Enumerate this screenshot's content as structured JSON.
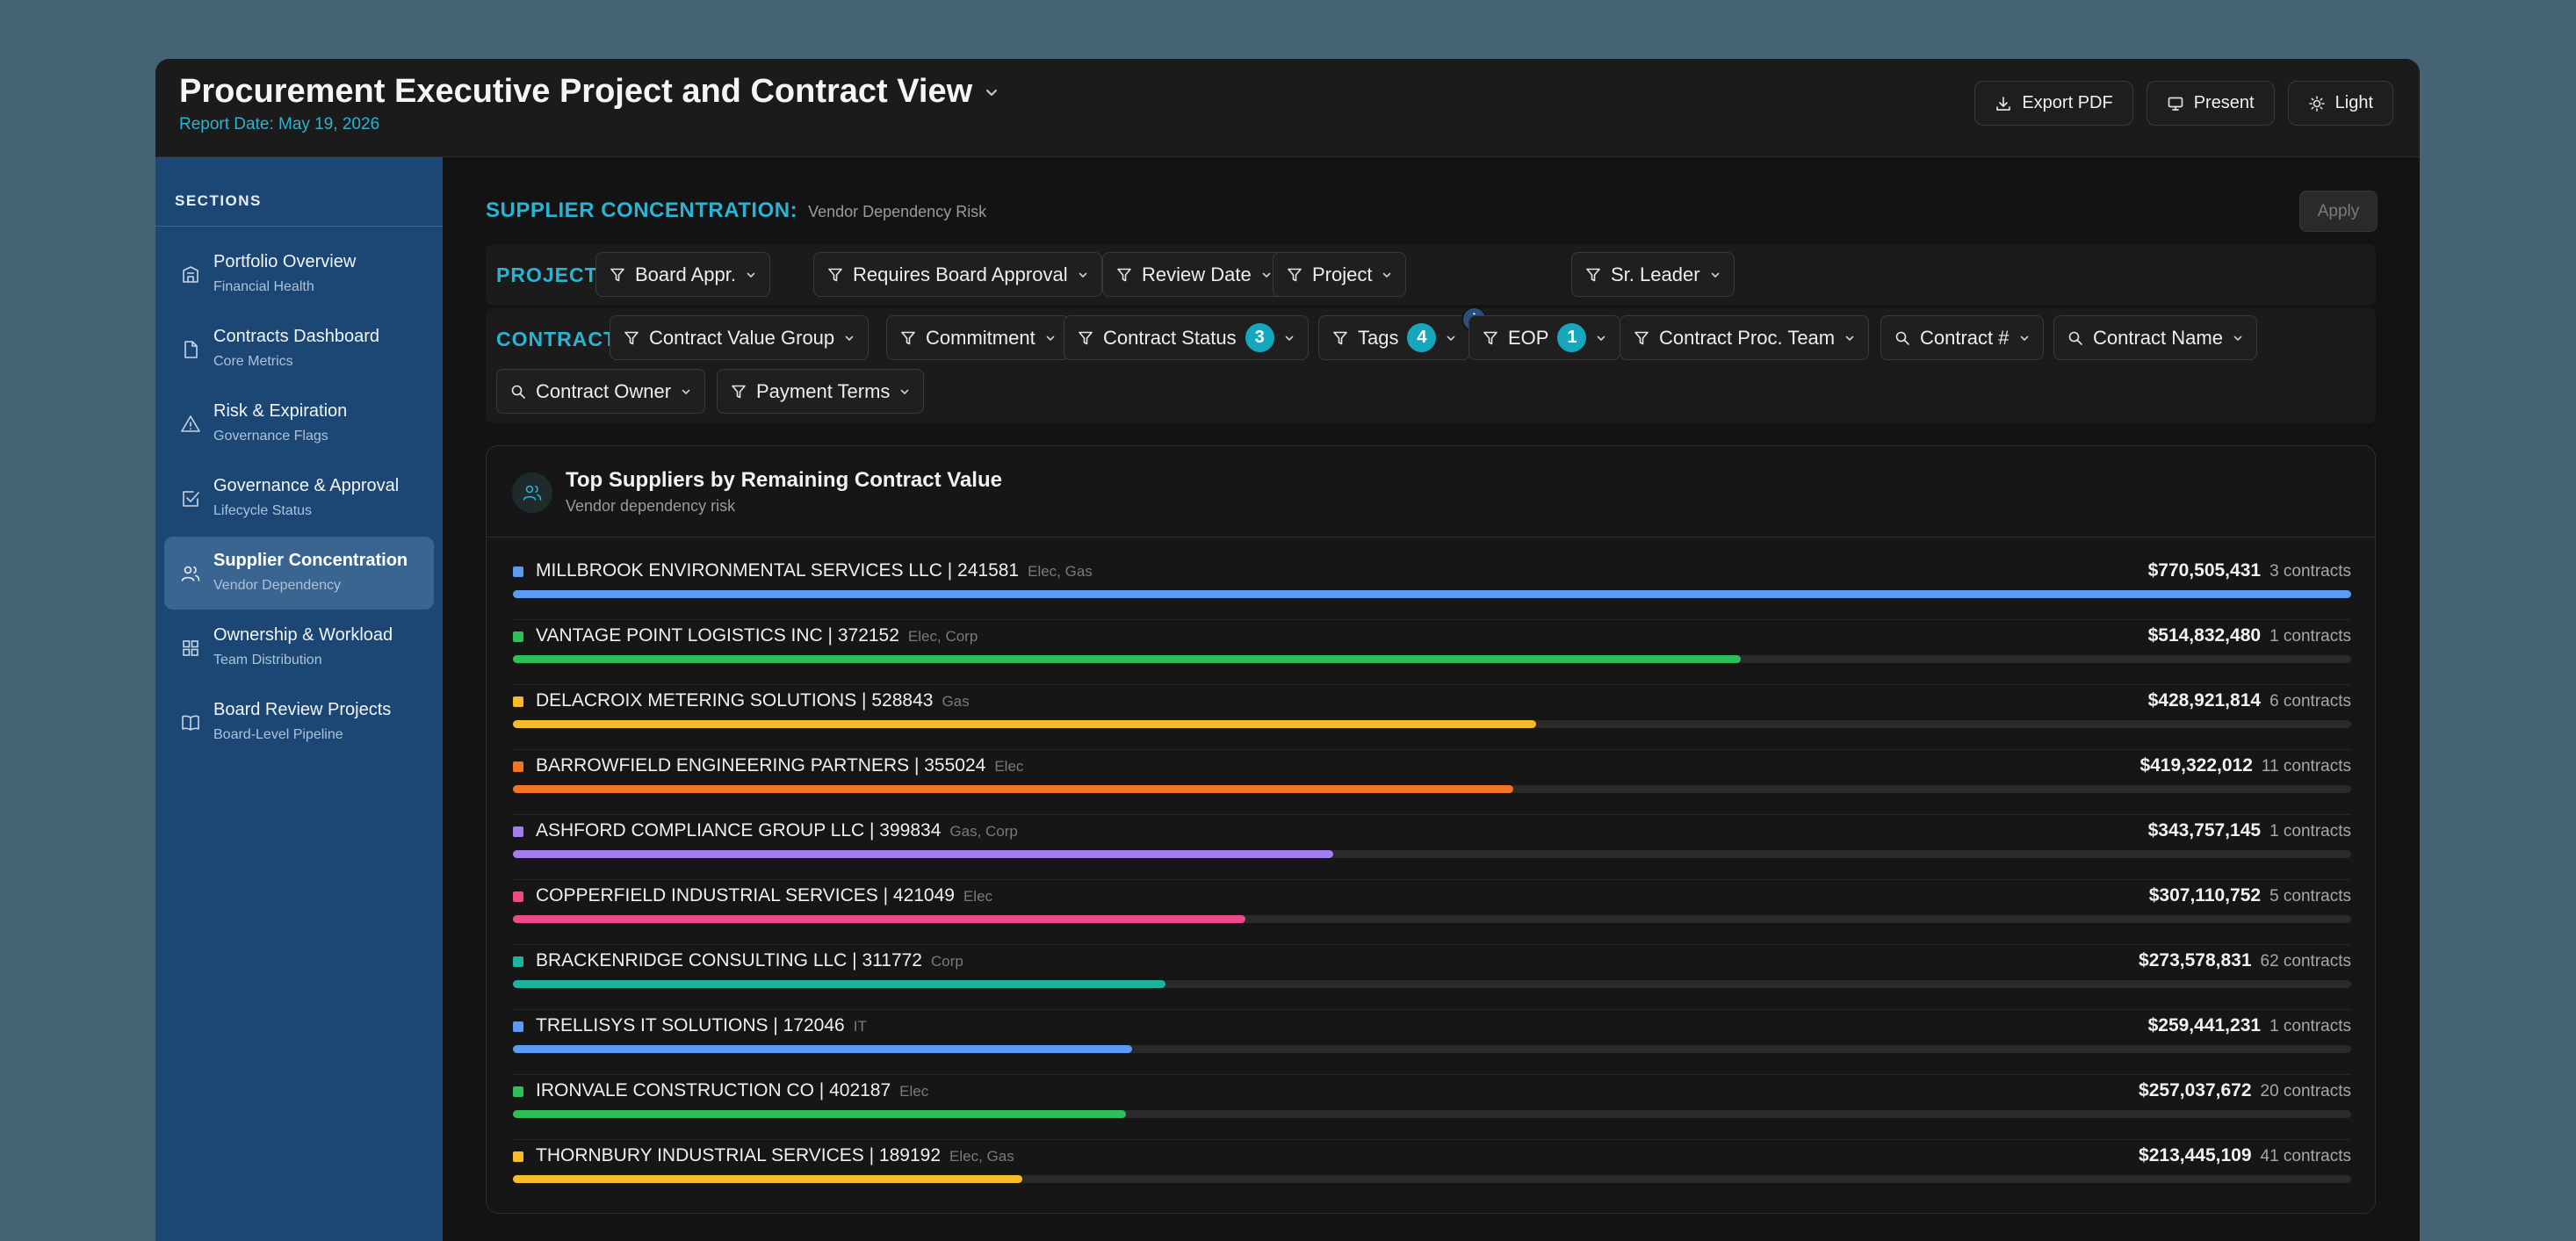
{
  "header": {
    "title": "Procurement Executive Project and Contract View",
    "report_date": "Report Date: May 19, 2026",
    "buttons": {
      "export": "Export PDF",
      "present": "Present",
      "theme": "Light"
    }
  },
  "sidebar": {
    "label": "SECTIONS",
    "items": [
      {
        "title": "Portfolio Overview",
        "sub": "Financial Health",
        "icon": "building-icon"
      },
      {
        "title": "Contracts Dashboard",
        "sub": "Core Metrics",
        "icon": "document-icon"
      },
      {
        "title": "Risk & Expiration",
        "sub": "Governance Flags",
        "icon": "warning-icon"
      },
      {
        "title": "Governance & Approval",
        "sub": "Lifecycle Status",
        "icon": "checkbox-icon"
      },
      {
        "title": "Supplier Concentration",
        "sub": "Vendor Dependency",
        "icon": "users-icon",
        "active": true
      },
      {
        "title": "Ownership & Workload",
        "sub": "Team Distribution",
        "icon": "grid-icon"
      },
      {
        "title": "Board Review Projects",
        "sub": "Board-Level Pipeline",
        "icon": "book-icon"
      }
    ]
  },
  "section": {
    "title": "SUPPLIER CONCENTRATION:",
    "subtitle": "Vendor Dependency Risk",
    "apply": "Apply"
  },
  "filters": {
    "project_label": "PROJECT:",
    "project": [
      "Board Appr.",
      "Requires Board Approval",
      "Review Date",
      "Project",
      "Sr. Leader"
    ],
    "contract_label": "CONTRACT:",
    "contract": [
      {
        "label": "Contract Value Group",
        "icon": "filter-icon"
      },
      {
        "label": "Commitment",
        "icon": "filter-icon"
      },
      {
        "label": "Contract Status",
        "icon": "filter-icon",
        "badge": "3"
      },
      {
        "label": "Tags",
        "icon": "filter-icon",
        "badge": "4",
        "info": "i"
      },
      {
        "label": "EOP",
        "icon": "filter-icon",
        "badge": "1"
      },
      {
        "label": "Contract Proc. Team",
        "icon": "filter-icon"
      },
      {
        "label": "Contract #",
        "icon": "search-icon"
      },
      {
        "label": "Contract Name",
        "icon": "search-icon"
      },
      {
        "label": "Contract Owner",
        "icon": "search-icon"
      },
      {
        "label": "Payment Terms",
        "icon": "filter-icon"
      }
    ]
  },
  "card": {
    "title": "Top Suppliers by Remaining Contract Value",
    "subtitle": "Vendor dependency risk"
  },
  "suppliers": [
    {
      "name": "MILLBROOK ENVIRONMENTAL SERVICES LLC | 241581",
      "tags": "Elec, Gas",
      "amount": "$770,505,431",
      "contracts": "3 contracts",
      "value": 770505431,
      "color": "#5b9cf2"
    },
    {
      "name": "VANTAGE POINT LOGISTICS INC | 372152",
      "tags": "Elec, Corp",
      "amount": "$514,832,480",
      "contracts": "1 contracts",
      "value": 514832480,
      "color": "#2fbf5a"
    },
    {
      "name": "DELACROIX METERING SOLUTIONS | 528843",
      "tags": "Gas",
      "amount": "$428,921,814",
      "contracts": "6 contracts",
      "value": 428921814,
      "color": "#f6bd28"
    },
    {
      "name": "BARROWFIELD ENGINEERING PARTNERS | 355024",
      "tags": "Elec",
      "amount": "$419,322,012",
      "contracts": "11 contracts",
      "value": 419322012,
      "color": "#f37524"
    },
    {
      "name": "ASHFORD COMPLIANCE GROUP LLC | 399834",
      "tags": "Gas, Corp",
      "amount": "$343,757,145",
      "contracts": "1 contracts",
      "value": 343757145,
      "color": "#a37df0"
    },
    {
      "name": "COPPERFIELD INDUSTRIAL SERVICES | 421049",
      "tags": "Elec",
      "amount": "$307,110,752",
      "contracts": "5 contracts",
      "value": 307110752,
      "color": "#ec4a8a"
    },
    {
      "name": "BRACKENRIDGE CONSULTING LLC | 311772",
      "tags": "Corp",
      "amount": "$273,578,831",
      "contracts": "62 contracts",
      "value": 273578831,
      "color": "#1db39c"
    },
    {
      "name": "TRELLISYS IT SOLUTIONS | 172046",
      "tags": "IT",
      "amount": "$259,441,231",
      "contracts": "1 contracts",
      "value": 259441231,
      "color": "#5b9cf2"
    },
    {
      "name": "IRONVALE CONSTRUCTION CO | 402187",
      "tags": "Elec",
      "amount": "$257,037,672",
      "contracts": "20 contracts",
      "value": 257037672,
      "color": "#2fbf5a"
    },
    {
      "name": "THORNBURY INDUSTRIAL SERVICES | 189192",
      "tags": "Elec, Gas",
      "amount": "$213,445,109",
      "contracts": "41 contracts",
      "value": 213445109,
      "color": "#f6bd28"
    }
  ]
}
